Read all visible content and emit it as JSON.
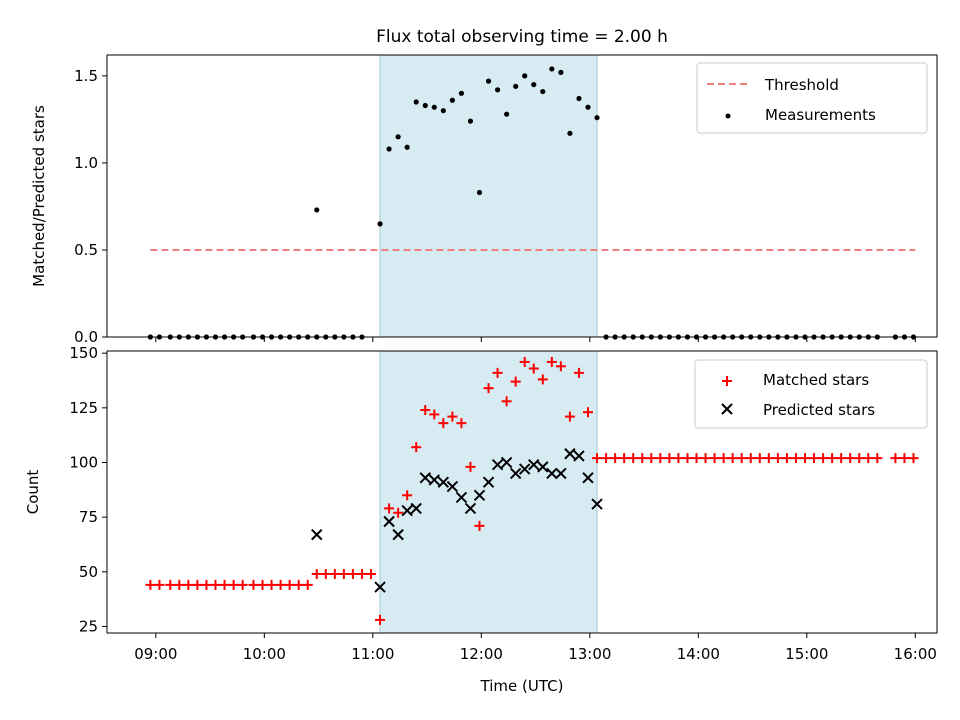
{
  "title": "Flux total observing time = 2.00 h",
  "colors": {
    "threshold": "#f08080",
    "measurement": "#000000",
    "matched": "#ff0000",
    "predicted": "#000000",
    "highlight": "#add8e6"
  },
  "chart_data": [
    {
      "type": "scatter",
      "ylabel": "Matched/Predicted stars",
      "ylim": [
        0,
        1.62
      ],
      "xlim": [
        "08:33",
        "16:12"
      ],
      "yticks": [
        0.0,
        0.5,
        1.0,
        1.5
      ],
      "yticklabels": [
        "0.0",
        "0.5",
        "1.0",
        "1.5"
      ],
      "shaded_region": [
        "11:04",
        "13:04"
      ],
      "legend_position": "upper right",
      "threshold": {
        "name": "Threshold",
        "value": 0.5,
        "x_range": [
          "08:57",
          "16:00"
        ],
        "style": "dashed"
      },
      "series": [
        {
          "name": "Measurements",
          "marker": "dot",
          "x": [
            "08:57",
            "09:02",
            "09:08",
            "09:13",
            "09:18",
            "09:23",
            "09:28",
            "09:33",
            "09:38",
            "09:43",
            "09:48",
            "09:54",
            "09:59",
            "10:04",
            "10:09",
            "10:14",
            "10:19",
            "10:24",
            "10:29",
            "10:34",
            "10:39",
            "10:44",
            "10:49",
            "10:54",
            "11:04",
            "11:09",
            "11:14",
            "11:19",
            "11:24",
            "11:29",
            "11:34",
            "11:39",
            "11:44",
            "11:49",
            "11:54",
            "11:59",
            "12:04",
            "12:09",
            "12:14",
            "12:19",
            "12:24",
            "12:29",
            "12:34",
            "12:39",
            "12:44",
            "12:49",
            "12:54",
            "12:59",
            "13:04",
            "13:09",
            "13:14",
            "13:19",
            "13:24",
            "13:29",
            "13:34",
            "13:39",
            "13:44",
            "13:49",
            "13:54",
            "13:59",
            "14:04",
            "14:09",
            "14:14",
            "14:19",
            "14:24",
            "14:29",
            "14:34",
            "14:39",
            "14:44",
            "14:49",
            "14:54",
            "14:59",
            "15:04",
            "15:09",
            "15:14",
            "15:19",
            "15:24",
            "15:29",
            "15:34",
            "15:39",
            "15:49",
            "15:54",
            "15:59"
          ],
          "y": [
            0,
            0,
            0,
            0,
            0,
            0,
            0,
            0,
            0,
            0,
            0,
            0,
            0,
            0,
            0,
            0,
            0,
            0,
            0,
            0,
            0,
            0,
            0,
            0,
            0.65,
            1.08,
            1.15,
            1.09,
            1.35,
            1.33,
            1.32,
            1.3,
            1.36,
            1.4,
            1.24,
            0.83,
            1.47,
            1.42,
            1.28,
            1.44,
            1.5,
            1.45,
            1.41,
            1.54,
            1.52,
            1.17,
            1.37,
            1.32,
            1.26,
            0,
            0,
            0,
            0,
            0,
            0,
            0,
            0,
            0,
            0,
            0,
            0,
            0,
            0,
            0,
            0,
            0,
            0,
            0,
            0,
            0,
            0,
            0,
            0,
            0,
            0,
            0,
            0,
            0,
            0,
            0,
            0,
            0,
            0
          ],
          "extra_points": [
            {
              "x": "10:29",
              "y": 0.73
            }
          ]
        }
      ]
    },
    {
      "type": "scatter",
      "xlabel": "Time (UTC)",
      "ylabel": "Count",
      "ylim": [
        22,
        151
      ],
      "xlim": [
        "08:33",
        "16:12"
      ],
      "xticks": [
        "09:00",
        "10:00",
        "11:00",
        "12:00",
        "13:00",
        "14:00",
        "15:00",
        "16:00"
      ],
      "yticks": [
        25,
        50,
        75,
        100,
        125,
        150
      ],
      "shaded_region": [
        "11:04",
        "13:04"
      ],
      "legend_position": "upper right",
      "series": [
        {
          "name": "Matched stars",
          "marker": "plus",
          "x": [
            "08:57",
            "09:02",
            "09:08",
            "09:13",
            "09:18",
            "09:23",
            "09:28",
            "09:33",
            "09:38",
            "09:43",
            "09:48",
            "09:54",
            "09:59",
            "10:04",
            "10:09",
            "10:14",
            "10:19",
            "10:24",
            "10:29",
            "10:34",
            "10:39",
            "10:44",
            "10:49",
            "10:54",
            "10:59",
            "11:04",
            "11:09",
            "11:14",
            "11:19",
            "11:24",
            "11:29",
            "11:34",
            "11:39",
            "11:44",
            "11:49",
            "11:54",
            "11:59",
            "12:04",
            "12:09",
            "12:14",
            "12:19",
            "12:24",
            "12:29",
            "12:34",
            "12:39",
            "12:44",
            "12:49",
            "12:54",
            "12:59",
            "13:04",
            "13:09",
            "13:14",
            "13:19",
            "13:24",
            "13:29",
            "13:34",
            "13:39",
            "13:44",
            "13:49",
            "13:54",
            "13:59",
            "14:04",
            "14:09",
            "14:14",
            "14:19",
            "14:24",
            "14:29",
            "14:34",
            "14:39",
            "14:44",
            "14:49",
            "14:54",
            "14:59",
            "15:04",
            "15:09",
            "15:14",
            "15:19",
            "15:24",
            "15:29",
            "15:34",
            "15:39",
            "15:49",
            "15:54",
            "15:59"
          ],
          "y": [
            44,
            44,
            44,
            44,
            44,
            44,
            44,
            44,
            44,
            44,
            44,
            44,
            44,
            44,
            44,
            44,
            44,
            44,
            49,
            49,
            49,
            49,
            49,
            49,
            49,
            28,
            79,
            77,
            85,
            107,
            124,
            122,
            118,
            121,
            118,
            98,
            71,
            134,
            141,
            128,
            137,
            146,
            143,
            138,
            146,
            144,
            121,
            141,
            123,
            102,
            102,
            102,
            102,
            102,
            102,
            102,
            102,
            102,
            102,
            102,
            102,
            102,
            102,
            102,
            102,
            102,
            102,
            102,
            102,
            102,
            102,
            102,
            102,
            102,
            102,
            102,
            102,
            102,
            102,
            102,
            102,
            102,
            102,
            102
          ]
        },
        {
          "name": "Predicted stars",
          "marker": "x",
          "x": [
            "10:29",
            "11:04",
            "11:09",
            "11:14",
            "11:19",
            "11:24",
            "11:29",
            "11:34",
            "11:39",
            "11:44",
            "11:49",
            "11:54",
            "11:59",
            "12:04",
            "12:09",
            "12:14",
            "12:19",
            "12:24",
            "12:29",
            "12:34",
            "12:39",
            "12:44",
            "12:49",
            "12:54",
            "12:59",
            "13:04"
          ],
          "y": [
            67,
            43,
            73,
            67,
            78,
            79,
            93,
            92,
            91,
            89,
            84,
            79,
            85,
            91,
            99,
            100,
            95,
            97,
            99,
            98,
            95,
            95,
            104,
            103,
            93,
            81
          ]
        }
      ]
    }
  ]
}
